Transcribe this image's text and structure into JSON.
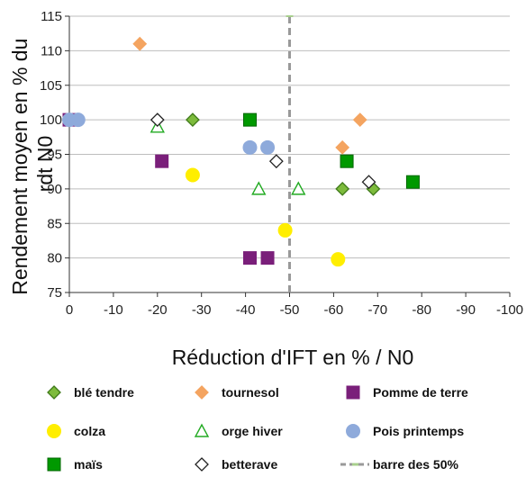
{
  "chart_data": {
    "type": "scatter",
    "xlabel": "Réduction d'IFT en % / N0",
    "ylabel_lines": [
      "Rendement moyen en % du",
      "rdt N0"
    ],
    "xlim": [
      0,
      -100
    ],
    "ylim": [
      75,
      115
    ],
    "x_ticks": [
      "0",
      "-10",
      "-20",
      "-30",
      "-40",
      "-50",
      "-60",
      "-70",
      "-80",
      "-90",
      "-100"
    ],
    "x_tick_values": [
      0,
      -10,
      -20,
      -30,
      -40,
      -50,
      -60,
      -70,
      -80,
      -90,
      -100
    ],
    "y_ticks": [
      "75",
      "80",
      "85",
      "90",
      "95",
      "100",
      "105",
      "110",
      "115"
    ],
    "y_tick_values": [
      75,
      80,
      85,
      90,
      95,
      100,
      105,
      110,
      115
    ],
    "grid": "horizontal",
    "legend_position": "bottom",
    "reference_line": {
      "name": "barre des 50%",
      "x": -50,
      "color": "#999999"
    },
    "series": [
      {
        "name": "blé tendre",
        "marker": "diamond",
        "fill": "#7dbb3c",
        "stroke": "#3f7a1a",
        "points": [
          [
            -28,
            100
          ],
          [
            -62,
            90
          ],
          [
            -69,
            90
          ]
        ]
      },
      {
        "name": "tournesol",
        "marker": "diamond",
        "fill": "#f4a460",
        "stroke": "#f4a460",
        "points": [
          [
            -16,
            111
          ],
          [
            -66,
            100
          ],
          [
            -62,
            96
          ]
        ]
      },
      {
        "name": "Pomme de terre",
        "marker": "square",
        "fill": "#7a1f7a",
        "stroke": "#7a1f7a",
        "points": [
          [
            0,
            100
          ],
          [
            -21,
            94
          ],
          [
            -41,
            80
          ],
          [
            -45,
            80
          ]
        ]
      },
      {
        "name": "colza",
        "marker": "circle",
        "fill": "#ffee00",
        "stroke": "#ffee00",
        "points": [
          [
            -28,
            92
          ],
          [
            -49,
            84
          ],
          [
            -61,
            79.8
          ]
        ]
      },
      {
        "name": "orge hiver",
        "marker": "triangle",
        "fill": "#ffffff",
        "stroke": "#22aa22",
        "points": [
          [
            -20,
            99
          ],
          [
            -43,
            90
          ],
          [
            -52,
            90
          ]
        ]
      },
      {
        "name": "Pois printemps",
        "marker": "circle",
        "fill": "#8eaadb",
        "stroke": "#8eaadb",
        "points": [
          [
            0,
            100
          ],
          [
            -2,
            100
          ],
          [
            -41,
            96
          ],
          [
            -45,
            96
          ]
        ]
      },
      {
        "name": "maïs",
        "marker": "square",
        "fill": "#009900",
        "stroke": "#006600",
        "points": [
          [
            -41,
            100
          ],
          [
            -63,
            94
          ],
          [
            -78,
            91
          ]
        ]
      },
      {
        "name": "betterave",
        "marker": "diamond",
        "fill": "#ffffff",
        "stroke": "#222222",
        "points": [
          [
            -20,
            100
          ],
          [
            -47,
            94
          ],
          [
            -68,
            91
          ]
        ]
      }
    ]
  }
}
